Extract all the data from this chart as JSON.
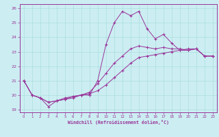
{
  "xlabel": "Windchill (Refroidissement éolien,°C)",
  "xlim": [
    -0.5,
    23.5
  ],
  "ylim": [
    18.8,
    26.3
  ],
  "yticks": [
    19,
    20,
    21,
    22,
    23,
    24,
    25,
    26
  ],
  "xticks": [
    0,
    1,
    2,
    3,
    4,
    5,
    6,
    7,
    8,
    9,
    10,
    11,
    12,
    13,
    14,
    15,
    16,
    17,
    18,
    19,
    20,
    21,
    22,
    23
  ],
  "background_color": "#cceef2",
  "grid_color": "#aadddd",
  "line_color": "#993399",
  "line1_x": [
    0,
    1,
    2,
    3,
    4,
    5,
    6,
    7,
    8,
    9,
    10,
    11,
    12,
    13,
    14,
    15,
    16,
    17,
    18,
    19,
    20,
    21,
    22,
    23
  ],
  "line1_y": [
    21.0,
    20.0,
    19.8,
    19.2,
    19.6,
    19.7,
    19.8,
    20.0,
    20.0,
    21.0,
    23.5,
    25.0,
    25.8,
    25.5,
    25.8,
    24.6,
    23.9,
    24.2,
    23.6,
    23.1,
    23.2,
    23.2,
    22.7,
    22.7
  ],
  "line2_x": [
    0,
    1,
    2,
    3,
    4,
    5,
    6,
    7,
    8,
    9,
    10,
    11,
    12,
    13,
    14,
    15,
    16,
    17,
    18,
    19,
    20,
    21,
    22,
    23
  ],
  "line2_y": [
    21.0,
    20.0,
    19.8,
    19.5,
    19.6,
    19.8,
    19.9,
    20.0,
    20.1,
    20.3,
    20.7,
    21.2,
    21.7,
    22.2,
    22.6,
    22.7,
    22.8,
    22.9,
    23.0,
    23.1,
    23.1,
    23.2,
    22.7,
    22.7
  ],
  "line3_x": [
    0,
    1,
    2,
    3,
    4,
    5,
    6,
    7,
    8,
    9,
    10,
    11,
    12,
    13,
    14,
    15,
    16,
    17,
    18,
    19,
    20,
    21,
    22,
    23
  ],
  "line3_y": [
    21.0,
    20.0,
    19.8,
    19.5,
    19.6,
    19.7,
    19.9,
    20.0,
    20.2,
    20.8,
    21.5,
    22.2,
    22.7,
    23.2,
    23.4,
    23.3,
    23.2,
    23.3,
    23.2,
    23.2,
    23.1,
    23.2,
    22.7,
    22.7
  ]
}
